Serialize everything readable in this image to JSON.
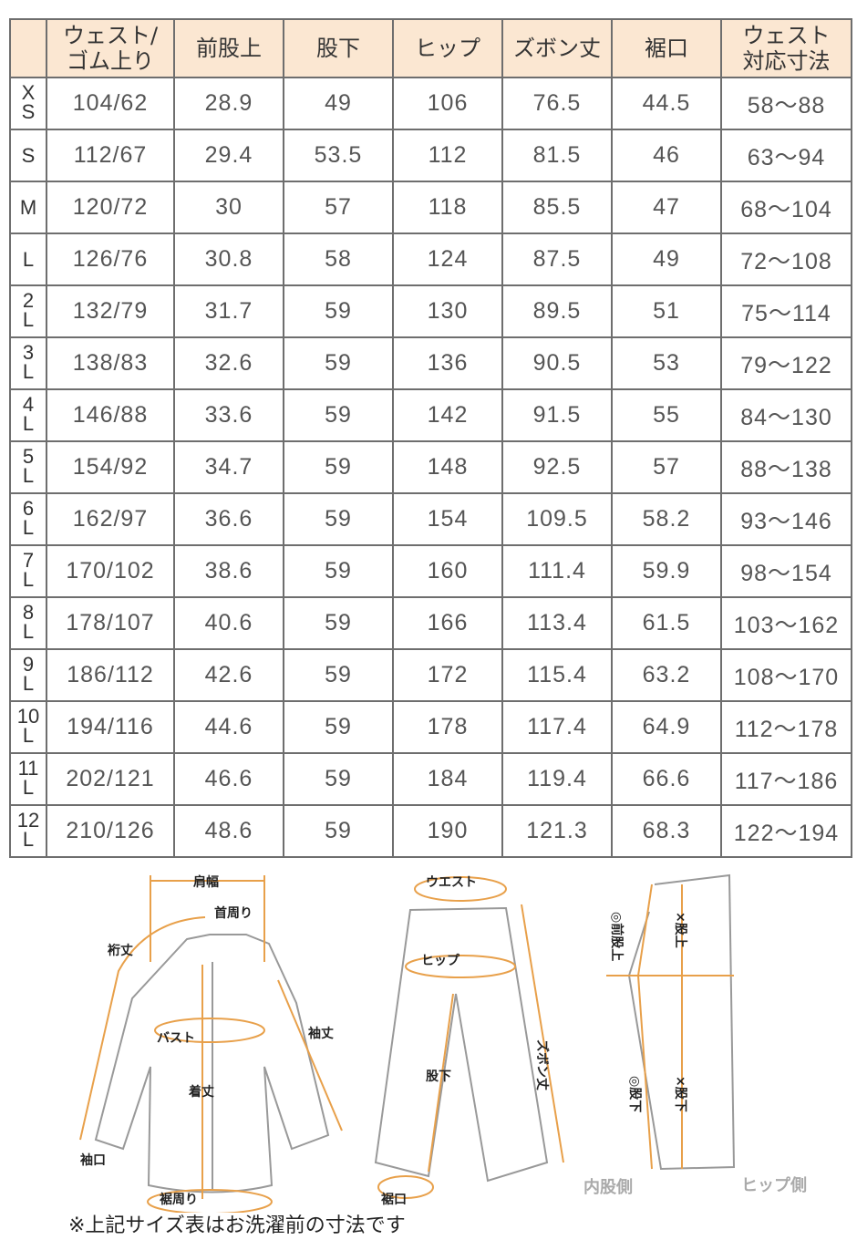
{
  "table": {
    "headers": [
      "",
      "ウェスト/\nゴム上り",
      "前股上",
      "股下",
      "ヒップ",
      "ズボン丈",
      "裾口",
      "ウェスト\n対応寸法"
    ],
    "rows": [
      [
        "XS",
        "104/62",
        "28.9",
        "49",
        "106",
        "76.5",
        "44.5",
        "58〜88"
      ],
      [
        "S",
        "112/67",
        "29.4",
        "53.5",
        "112",
        "81.5",
        "46",
        "63〜94"
      ],
      [
        "M",
        "120/72",
        "30",
        "57",
        "118",
        "85.5",
        "47",
        "68〜104"
      ],
      [
        "L",
        "126/76",
        "30.8",
        "58",
        "124",
        "87.5",
        "49",
        "72〜108"
      ],
      [
        "2L",
        "132/79",
        "31.7",
        "59",
        "130",
        "89.5",
        "51",
        "75〜114"
      ],
      [
        "3L",
        "138/83",
        "32.6",
        "59",
        "136",
        "90.5",
        "53",
        "79〜122"
      ],
      [
        "4L",
        "146/88",
        "33.6",
        "59",
        "142",
        "91.5",
        "55",
        "84〜130"
      ],
      [
        "5L",
        "154/92",
        "34.7",
        "59",
        "148",
        "92.5",
        "57",
        "88〜138"
      ],
      [
        "6L",
        "162/97",
        "36.6",
        "59",
        "154",
        "109.5",
        "58.2",
        "93〜146"
      ],
      [
        "7L",
        "170/102",
        "38.6",
        "59",
        "160",
        "111.4",
        "59.9",
        "98〜154"
      ],
      [
        "8L",
        "178/107",
        "40.6",
        "59",
        "166",
        "113.4",
        "61.5",
        "103〜162"
      ],
      [
        "9L",
        "186/112",
        "42.6",
        "59",
        "172",
        "115.4",
        "63.2",
        "108〜170"
      ],
      [
        "10L",
        "194/116",
        "44.6",
        "59",
        "178",
        "117.4",
        "64.9",
        "112〜178"
      ],
      [
        "11L",
        "202/121",
        "46.6",
        "59",
        "184",
        "119.4",
        "66.6",
        "117〜186"
      ],
      [
        "12L",
        "210/126",
        "48.6",
        "59",
        "190",
        "121.3",
        "68.3",
        "122〜194"
      ]
    ]
  },
  "diagram": {
    "shirt": {
      "shoulder": "肩幅",
      "neck": "首周り",
      "yuki": "裄丈",
      "bust": "バスト",
      "sleeve": "袖丈",
      "length": "着丈",
      "cuff": "袖口",
      "hem": "裾周り"
    },
    "pants": {
      "waist": "ウエスト",
      "hip": "ヒップ",
      "inseam": "股下",
      "length": "ズボン丈",
      "hem": "裾口"
    },
    "side": {
      "front_rise": "◎前股上",
      "rise_x": "×股上",
      "inseam_o": "◎股下",
      "inseam_x": "×股下",
      "inner": "内股側",
      "hip_side": "ヒップ側"
    },
    "accent": "#e8a04a"
  },
  "note": "※上記サイズ表はお洗濯前の寸法です"
}
